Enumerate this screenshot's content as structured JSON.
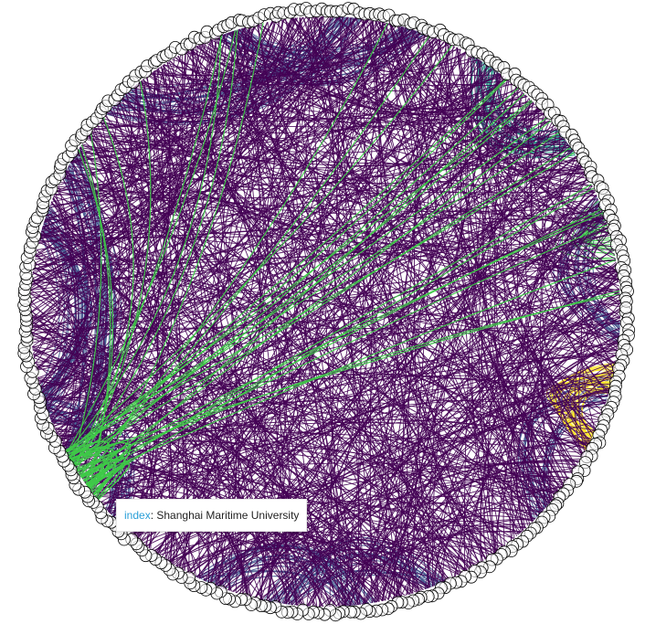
{
  "diagram": {
    "type": "chord",
    "edge_colors": {
      "dominant": "#440154",
      "slate": "#46598e",
      "teal": "#2a9d8a",
      "green": "#3ec948",
      "yellow": "#fde725"
    },
    "node_style": {
      "fill": "#ffffff",
      "stroke": "#000000"
    }
  },
  "tooltip": {
    "key": "index",
    "separator": ":",
    "value": "Shanghai Maritime University"
  }
}
